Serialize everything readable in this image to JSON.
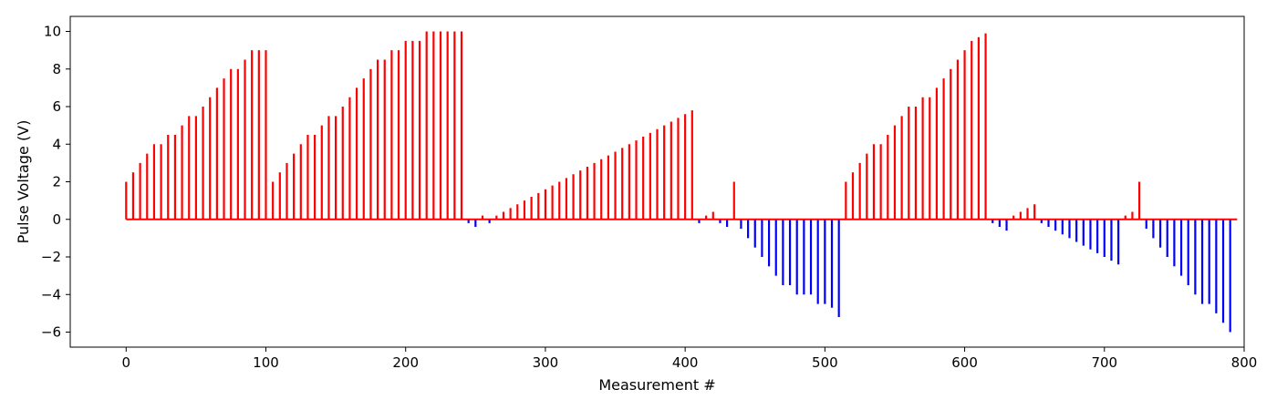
{
  "chart_data": {
    "type": "bar",
    "title": "",
    "xlabel": "Measurement #",
    "ylabel": "Pulse Voltage (V)",
    "xlim": [
      -40,
      800
    ],
    "ylim": [
      -6.8,
      10.8
    ],
    "xticks": [
      0,
      100,
      200,
      300,
      400,
      500,
      600,
      700,
      800
    ],
    "yticks": [
      -6,
      -4,
      -2,
      0,
      2,
      4,
      6,
      8,
      10
    ],
    "grid": false,
    "legend": "none",
    "colors": {
      "positive": "#ff0000",
      "negative": "#0000ff",
      "axes": "#000000"
    },
    "baseline": {
      "from": 0,
      "to": 795,
      "value": 0
    },
    "x": [
      0,
      5,
      10,
      15,
      20,
      25,
      30,
      35,
      40,
      45,
      50,
      55,
      60,
      65,
      70,
      75,
      80,
      85,
      90,
      95,
      100,
      105,
      110,
      115,
      120,
      125,
      130,
      135,
      140,
      145,
      150,
      155,
      160,
      165,
      170,
      175,
      180,
      185,
      190,
      195,
      200,
      205,
      210,
      215,
      220,
      225,
      230,
      235,
      240,
      245,
      250,
      255,
      260,
      265,
      270,
      275,
      280,
      285,
      290,
      295,
      300,
      305,
      310,
      315,
      320,
      325,
      330,
      335,
      340,
      345,
      350,
      355,
      360,
      365,
      370,
      375,
      380,
      385,
      390,
      395,
      400,
      405,
      410,
      415,
      420,
      425,
      430,
      435,
      440,
      445,
      450,
      455,
      460,
      465,
      470,
      475,
      480,
      485,
      490,
      495,
      500,
      505,
      510,
      515,
      520,
      525,
      530,
      535,
      540,
      545,
      550,
      555,
      560,
      565,
      570,
      575,
      580,
      585,
      590,
      595,
      600,
      605,
      610,
      615,
      620,
      625,
      630,
      635,
      640,
      645,
      650,
      655,
      660,
      665,
      670,
      675,
      680,
      685,
      690,
      695,
      700,
      705,
      710,
      715,
      720,
      725,
      730,
      735,
      740,
      745,
      750,
      755,
      760,
      765,
      770,
      775,
      780,
      785,
      790
    ],
    "values": [
      2.0,
      2.5,
      3.0,
      3.5,
      4.0,
      4.0,
      4.5,
      4.5,
      5.0,
      5.5,
      5.5,
      6.0,
      6.5,
      7.0,
      7.5,
      8.0,
      8.0,
      8.5,
      9.0,
      9.0,
      9.0,
      2.0,
      2.5,
      3.0,
      3.5,
      4.0,
      4.5,
      4.5,
      5.0,
      5.5,
      5.5,
      6.0,
      6.5,
      7.0,
      7.5,
      8.0,
      8.5,
      8.5,
      9.0,
      9.0,
      9.5,
      9.5,
      9.5,
      10.0,
      10.0,
      10.0,
      10.0,
      10.0,
      10.0,
      -0.2,
      -0.4,
      0.2,
      -0.2,
      0.2,
      0.4,
      0.6,
      0.8,
      1.0,
      1.2,
      1.4,
      1.6,
      1.8,
      2.0,
      2.2,
      2.4,
      2.6,
      2.8,
      3.0,
      3.2,
      3.4,
      3.6,
      3.8,
      4.0,
      4.2,
      4.4,
      4.6,
      4.8,
      5.0,
      5.2,
      5.4,
      5.6,
      5.8,
      -0.2,
      0.2,
      0.4,
      -0.2,
      -0.4,
      2.0,
      -0.5,
      -1.0,
      -1.5,
      -2.0,
      -2.5,
      -3.0,
      -3.5,
      -3.5,
      -4.0,
      -4.0,
      -4.0,
      -4.5,
      -4.5,
      -4.7,
      -5.2,
      2.0,
      2.5,
      3.0,
      3.5,
      4.0,
      4.0,
      4.5,
      5.0,
      5.5,
      6.0,
      6.0,
      6.5,
      6.5,
      7.0,
      7.5,
      8.0,
      8.5,
      9.0,
      9.5,
      9.7,
      9.9,
      -0.2,
      -0.4,
      -0.6,
      0.2,
      0.4,
      0.6,
      0.8,
      -0.2,
      -0.4,
      -0.6,
      -0.8,
      -1.0,
      -1.2,
      -1.4,
      -1.6,
      -1.8,
      -2.0,
      -2.2,
      -2.4,
      0.2,
      0.4,
      2.0,
      -0.5,
      -1.0,
      -1.5,
      -2.0,
      -2.5,
      -3.0,
      -3.5,
      -4.0,
      -4.5,
      -4.5,
      -5.0,
      -5.5,
      -6.0
    ]
  }
}
